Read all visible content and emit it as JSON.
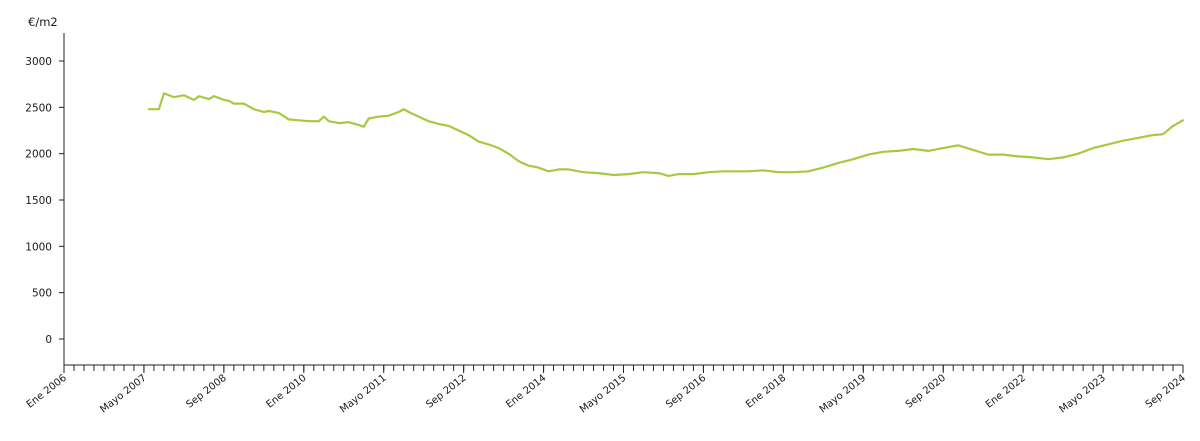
{
  "chart_data": {
    "type": "line",
    "title": "",
    "ylabel": "€/m2",
    "xlabel": "",
    "ylim": [
      0,
      3000
    ],
    "y_ticks": [
      0,
      500,
      1000,
      1500,
      2000,
      2500,
      3000
    ],
    "x_start": "2006-01",
    "x_end": "2024-09",
    "x_tick_labels": [
      "Ene 2006",
      "Mayo 2007",
      "Sep 2008",
      "Ene 2010",
      "Mayo 2011",
      "Sep 2012",
      "Ene 2014",
      "Mayo 2015",
      "Sep 2016",
      "Ene 2018",
      "Mayo 2019",
      "Sep 2020",
      "Ene 2022",
      "Mayo 2023",
      "Sep 2024"
    ],
    "grid": false,
    "legend": "none",
    "line_color": "#a7c941",
    "series": [
      {
        "points": [
          [
            "2007-06",
            2480
          ],
          [
            "2007-08",
            2480
          ],
          [
            "2007-09",
            2650
          ],
          [
            "2007-11",
            2610
          ],
          [
            "2008-01",
            2630
          ],
          [
            "2008-03",
            2580
          ],
          [
            "2008-04",
            2620
          ],
          [
            "2008-06",
            2590
          ],
          [
            "2008-07",
            2620
          ],
          [
            "2008-09",
            2580
          ],
          [
            "2008-10",
            2570
          ],
          [
            "2008-11",
            2540
          ],
          [
            "2009-01",
            2540
          ],
          [
            "2009-03",
            2480
          ],
          [
            "2009-05",
            2450
          ],
          [
            "2009-06",
            2460
          ],
          [
            "2009-08",
            2440
          ],
          [
            "2009-10",
            2370
          ],
          [
            "2009-12",
            2360
          ],
          [
            "2010-02",
            2350
          ],
          [
            "2010-04",
            2350
          ],
          [
            "2010-05",
            2400
          ],
          [
            "2010-06",
            2350
          ],
          [
            "2010-08",
            2330
          ],
          [
            "2010-10",
            2340
          ],
          [
            "2010-12",
            2310
          ],
          [
            "2011-01",
            2290
          ],
          [
            "2011-02",
            2380
          ],
          [
            "2011-04",
            2400
          ],
          [
            "2011-06",
            2410
          ],
          [
            "2011-08",
            2450
          ],
          [
            "2011-09",
            2480
          ],
          [
            "2011-10",
            2450
          ],
          [
            "2011-12",
            2400
          ],
          [
            "2012-02",
            2350
          ],
          [
            "2012-04",
            2320
          ],
          [
            "2012-06",
            2300
          ],
          [
            "2012-08",
            2250
          ],
          [
            "2012-10",
            2200
          ],
          [
            "2012-12",
            2130
          ],
          [
            "2013-02",
            2100
          ],
          [
            "2013-04",
            2060
          ],
          [
            "2013-06",
            2000
          ],
          [
            "2013-08",
            1920
          ],
          [
            "2013-10",
            1870
          ],
          [
            "2013-12",
            1850
          ],
          [
            "2014-02",
            1810
          ],
          [
            "2014-04",
            1830
          ],
          [
            "2014-06",
            1830
          ],
          [
            "2014-09",
            1800
          ],
          [
            "2014-12",
            1790
          ],
          [
            "2015-03",
            1770
          ],
          [
            "2015-06",
            1780
          ],
          [
            "2015-09",
            1800
          ],
          [
            "2015-12",
            1790
          ],
          [
            "2016-02",
            1760
          ],
          [
            "2016-04",
            1780
          ],
          [
            "2016-07",
            1780
          ],
          [
            "2016-10",
            1800
          ],
          [
            "2017-01",
            1810
          ],
          [
            "2017-03",
            1810
          ],
          [
            "2017-06",
            1810
          ],
          [
            "2017-09",
            1820
          ],
          [
            "2017-12",
            1800
          ],
          [
            "2018-03",
            1800
          ],
          [
            "2018-06",
            1810
          ],
          [
            "2018-09",
            1850
          ],
          [
            "2018-12",
            1900
          ],
          [
            "2019-03",
            1940
          ],
          [
            "2019-06",
            1990
          ],
          [
            "2019-09",
            2020
          ],
          [
            "2019-12",
            2030
          ],
          [
            "2020-03",
            2050
          ],
          [
            "2020-06",
            2030
          ],
          [
            "2020-09",
            2060
          ],
          [
            "2020-12",
            2090
          ],
          [
            "2021-03",
            2040
          ],
          [
            "2021-06",
            1990
          ],
          [
            "2021-09",
            1990
          ],
          [
            "2021-12",
            1970
          ],
          [
            "2022-03",
            1960
          ],
          [
            "2022-06",
            1940
          ],
          [
            "2022-09",
            1960
          ],
          [
            "2022-12",
            2000
          ],
          [
            "2023-03",
            2060
          ],
          [
            "2023-06",
            2100
          ],
          [
            "2023-09",
            2140
          ],
          [
            "2023-12",
            2170
          ],
          [
            "2024-03",
            2200
          ],
          [
            "2024-05",
            2210
          ],
          [
            "2024-07",
            2300
          ],
          [
            "2024-09",
            2360
          ]
        ]
      }
    ]
  }
}
